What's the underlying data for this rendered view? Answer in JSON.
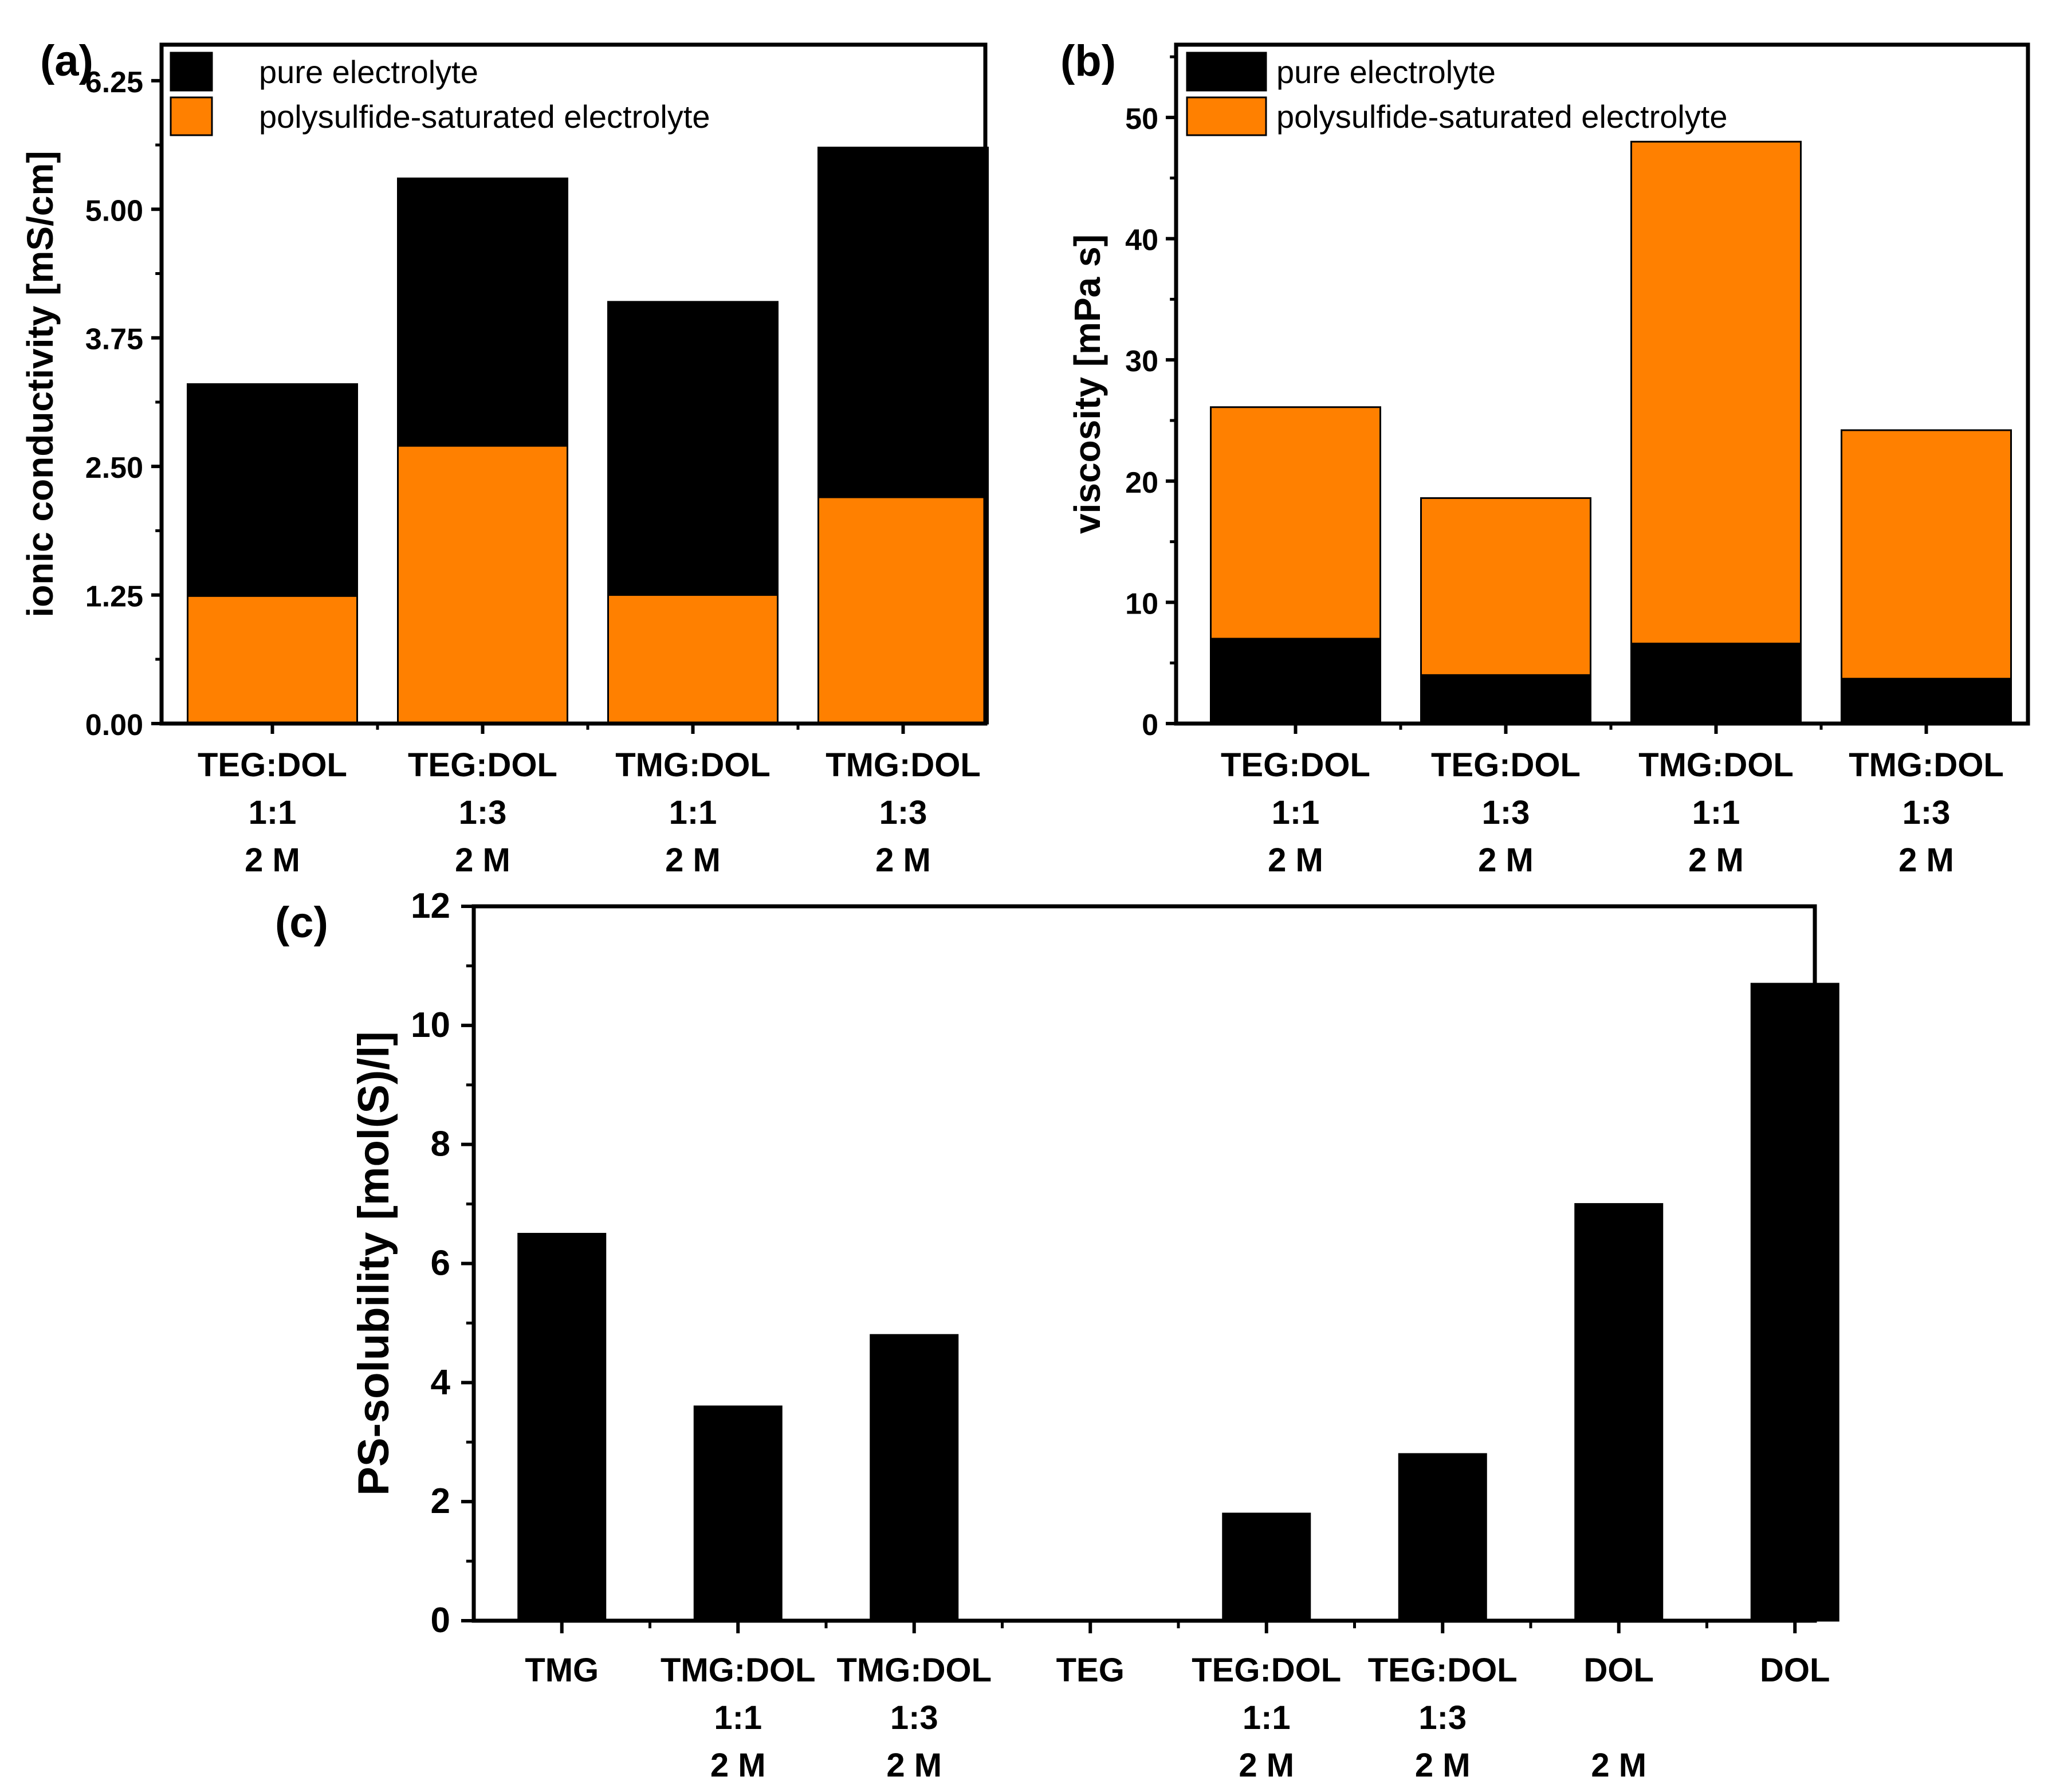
{
  "colors": {
    "pure": "#000000",
    "saturated": "#ff8000",
    "axis": "#000000"
  },
  "chart_data": [
    {
      "panel": "(a)",
      "type": "bar",
      "ylabel": "ionic conductivity [mS/cm]",
      "ylim": [
        0,
        6.6
      ],
      "yticks": [
        "0.00",
        "1.25",
        "2.50",
        "3.75",
        "5.00",
        "6.25"
      ],
      "categories": [
        [
          "TEG:DOL",
          "1:1",
          "2 M"
        ],
        [
          "TEG:DOL",
          "1:3",
          "2 M"
        ],
        [
          "TMG:DOL",
          "1:1",
          "2 M"
        ],
        [
          "TMG:DOL",
          "1:3",
          "2 M"
        ]
      ],
      "series": [
        {
          "name": "pure electrolyte",
          "color": "#000000",
          "values": [
            3.3,
            5.3,
            4.1,
            5.6
          ]
        },
        {
          "name": "polysulfide-saturated electrolyte",
          "color": "#ff8000",
          "values": [
            1.24,
            2.7,
            1.25,
            2.2
          ]
        }
      ],
      "legend": [
        "pure electrolyte",
        "polysulfide-saturated electrolyte"
      ],
      "legend_position": "top-left"
    },
    {
      "panel": "(b)",
      "type": "bar",
      "ylabel": "viscosity [mPa s]",
      "ylim": [
        0,
        56
      ],
      "yticks": [
        "0",
        "10",
        "20",
        "30",
        "40",
        "50"
      ],
      "categories": [
        [
          "TEG:DOL",
          "1:1",
          "2 M"
        ],
        [
          "TEG:DOL",
          "1:3",
          "2 M"
        ],
        [
          "TMG:DOL",
          "1:1",
          "2 M"
        ],
        [
          "TMG:DOL",
          "1:3",
          "2 M"
        ]
      ],
      "series": [
        {
          "name": "polysulfide-saturated electrolyte",
          "color": "#ff8000",
          "values": [
            26.1,
            18.6,
            48.0,
            24.2
          ]
        },
        {
          "name": "pure electrolyte",
          "color": "#000000",
          "values": [
            7.0,
            4.0,
            6.6,
            3.7
          ]
        }
      ],
      "legend": [
        "pure electrolyte",
        "polysulfide-saturated electrolyte"
      ],
      "legend_position": "top-left"
    },
    {
      "panel": "(c)",
      "type": "bar",
      "ylabel": "PS-solubility [mol(S)/l]",
      "ylim": [
        0,
        12
      ],
      "yticks": [
        "0",
        "2",
        "4",
        "6",
        "8",
        "10",
        "12"
      ],
      "categories": [
        [
          "TMG"
        ],
        [
          "TMG:DOL",
          "1:1",
          "2 M"
        ],
        [
          "TMG:DOL",
          "1:3",
          "2 M"
        ],
        [
          "TEG"
        ],
        [
          "TEG:DOL",
          "1:1",
          "2 M"
        ],
        [
          "TEG:DOL",
          "1:3",
          "2 M"
        ],
        [
          "DOL",
          "",
          "2 M"
        ],
        [
          "DOL"
        ]
      ],
      "series": [
        {
          "name": "PS-solubility",
          "color": "#000000",
          "values": [
            6.5,
            3.6,
            4.8,
            0,
            1.8,
            2.8,
            7.0,
            10.7
          ]
        }
      ]
    }
  ]
}
